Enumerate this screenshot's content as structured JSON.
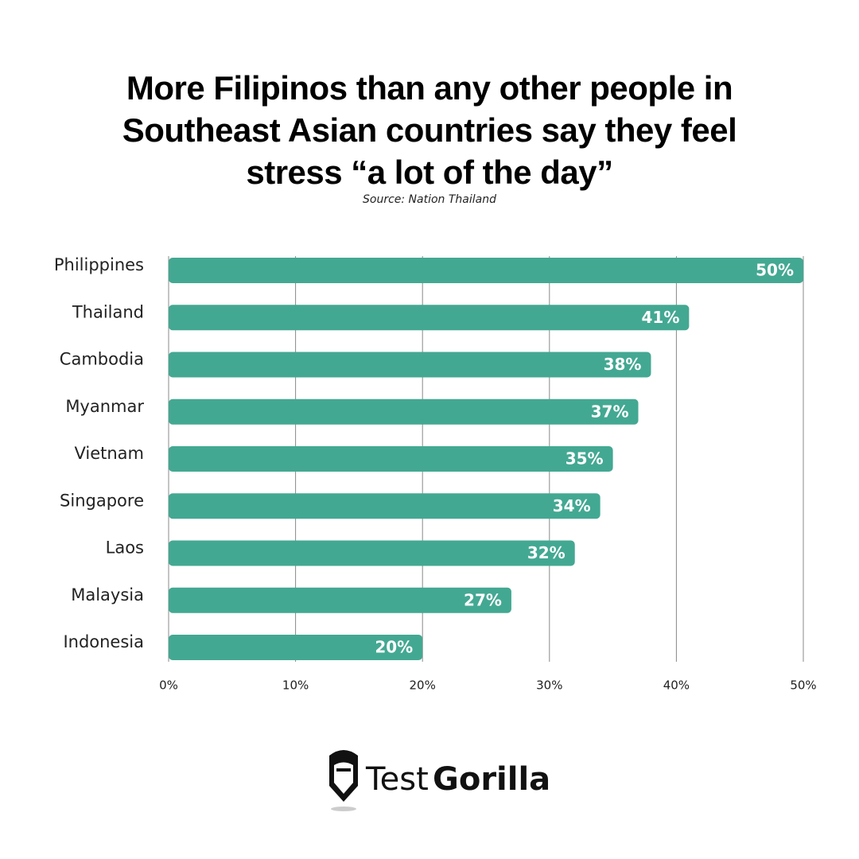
{
  "chart_data": {
    "type": "bar",
    "orientation": "horizontal",
    "title": "More Filipinos than any other people in Southeast Asian countries say they feel stress “a lot of the day”",
    "subtitle": "Source: Nation Thailand",
    "categories": [
      "Philippines",
      "Thailand",
      "Cambodia",
      "Myanmar",
      "Vietnam",
      "Singapore",
      "Laos",
      "Malaysia",
      "Indonesia"
    ],
    "values": [
      50,
      41,
      38,
      37,
      35,
      34,
      32,
      27,
      20
    ],
    "value_labels": [
      "50%",
      "41%",
      "38%",
      "37%",
      "35%",
      "34%",
      "32%",
      "27%",
      "20%"
    ],
    "color": "#43a892",
    "xlim": [
      0,
      50
    ],
    "xticks": [
      {
        "value": 0,
        "label": "0%"
      },
      {
        "value": 10,
        "label": "10%"
      },
      {
        "value": 20,
        "label": "20%"
      },
      {
        "value": 30,
        "label": "30%"
      },
      {
        "value": 40,
        "label": "40%"
      },
      {
        "value": 50,
        "label": "50%"
      }
    ],
    "grid": true
  },
  "logo": {
    "light": "Test",
    "bold": "Gorilla"
  }
}
